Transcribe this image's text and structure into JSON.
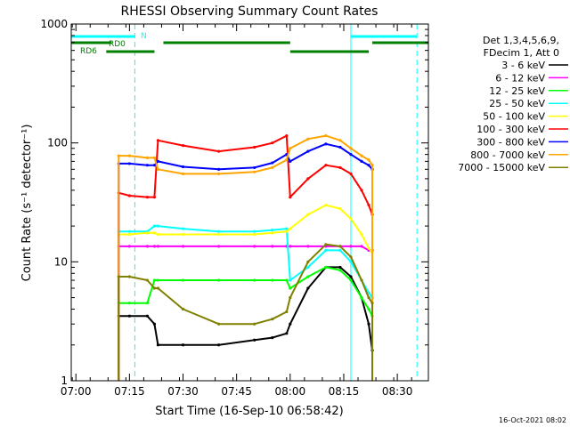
{
  "chart_data": {
    "type": "line",
    "title": "RHESSI Observing Summary Count Rates",
    "xlabel": "Start Time (16-Sep-10 06:58:42)",
    "ylabel": "Count Rate (s⁻¹ detector⁻¹)",
    "yscale": "log",
    "xlim": [
      "06:58:42",
      "08:38:42"
    ],
    "ylim": [
      1,
      1000
    ],
    "grid": false,
    "legend_position": "right",
    "x_ticks": [
      "07:00",
      "07:15",
      "07:30",
      "07:45",
      "08:00",
      "08:15",
      "08:30"
    ],
    "y_ticks": [
      "1",
      "10",
      "100",
      "1000"
    ],
    "legend_header": [
      "Det 1,3,4,5,6,9,",
      "FDecim 1, Att 0"
    ],
    "timestamp": "16-Oct-2021 08:02",
    "markers": {
      "N": {
        "label": "N",
        "color": "#00ffff",
        "spans": [
          [
            "06:58:42",
            "07:16:30"
          ],
          [
            "08:17:00",
            "08:35:30"
          ]
        ]
      },
      "RD0": {
        "label": "RD0",
        "color": "#008000",
        "spans": [
          [
            "06:58:42",
            "07:10:00"
          ],
          [
            "07:24:30",
            "08:00:00"
          ],
          [
            "08:23:00",
            "08:38:42"
          ]
        ]
      },
      "RD6": {
        "label": "RD6",
        "color": "#008000",
        "spans": [
          [
            "07:08:30",
            "07:22:00"
          ],
          [
            "08:00:00",
            "08:22:00"
          ]
        ]
      }
    },
    "vertical_lines": [
      {
        "time": "06:58:42",
        "style": "solid",
        "color": "#00ffff"
      },
      {
        "time": "07:16:30",
        "style": "dashed",
        "color": "#00ffff"
      },
      {
        "time": "08:17:00",
        "style": "solid",
        "color": "#00ffff"
      },
      {
        "time": "08:35:30",
        "style": "dashed",
        "color": "#00ffff"
      }
    ],
    "time_points": [
      "07:12",
      "07:15",
      "07:20",
      "07:22",
      "07:23",
      "07:30",
      "07:40",
      "07:50",
      "07:55",
      "07:59",
      "08:00",
      "08:05",
      "08:10",
      "08:14",
      "08:17",
      "08:20",
      "08:22",
      "08:23"
    ],
    "series": [
      {
        "name": "3 - 6 keV",
        "color": "#000000",
        "values": [
          3.5,
          3.5,
          3.5,
          3.0,
          2.0,
          2.0,
          2.0,
          2.2,
          2.3,
          2.5,
          3.0,
          6.0,
          9.0,
          9.0,
          7.5,
          5.0,
          3.0,
          1.8
        ]
      },
      {
        "name": "6 - 12 keV",
        "color": "#ff00ff",
        "values": [
          13.5,
          13.5,
          13.5,
          13.5,
          13.5,
          13.5,
          13.5,
          13.5,
          13.5,
          13.5,
          13.5,
          13.5,
          13.5,
          13.5,
          13.5,
          13.5,
          12.5,
          12.5
        ]
      },
      {
        "name": "12 - 25 keV",
        "color": "#00ff00",
        "values": [
          4.5,
          4.5,
          4.5,
          7.0,
          7.0,
          7.0,
          7.0,
          7.0,
          7.0,
          7.0,
          6.0,
          7.5,
          9.0,
          8.5,
          7.0,
          5.0,
          4.0,
          3.5
        ]
      },
      {
        "name": "25 - 50 keV",
        "color": "#00ffff",
        "values": [
          18,
          18,
          18,
          20,
          20,
          19,
          18,
          18,
          18.5,
          19,
          7.0,
          9.0,
          12.5,
          12.5,
          10.0,
          7.0,
          5.5,
          5.0
        ]
      },
      {
        "name": "50 - 100 keV",
        "color": "#ffff00",
        "values": [
          17,
          17,
          17.5,
          17.5,
          17,
          17,
          17,
          17,
          17.5,
          18,
          19,
          25,
          30,
          28,
          23,
          17,
          13,
          12
        ]
      },
      {
        "name": "100 - 300 keV",
        "color": "#ff0000",
        "values": [
          38,
          36,
          35,
          35,
          105,
          95,
          85,
          92,
          100,
          115,
          35,
          50,
          65,
          62,
          55,
          40,
          30,
          25
        ]
      },
      {
        "name": "300 - 800 keV",
        "color": "#0000ff",
        "values": [
          67,
          67,
          65,
          65,
          70,
          63,
          60,
          62,
          68,
          80,
          70,
          85,
          98,
          92,
          80,
          70,
          65,
          60
        ]
      },
      {
        "name": "800 - 7000 keV",
        "color": "#ffa500",
        "values": [
          78,
          78,
          75,
          75,
          60,
          55,
          55,
          57,
          62,
          72,
          90,
          108,
          115,
          105,
          90,
          78,
          72,
          65
        ]
      },
      {
        "name": "7000 - 15000 keV",
        "color": "#808000",
        "values": [
          7.5,
          7.5,
          7.0,
          6.0,
          6.0,
          4.0,
          3.0,
          3.0,
          3.3,
          3.8,
          5.0,
          10.0,
          14.0,
          13.5,
          11.0,
          7.0,
          5.0,
          4.5
        ]
      }
    ]
  }
}
